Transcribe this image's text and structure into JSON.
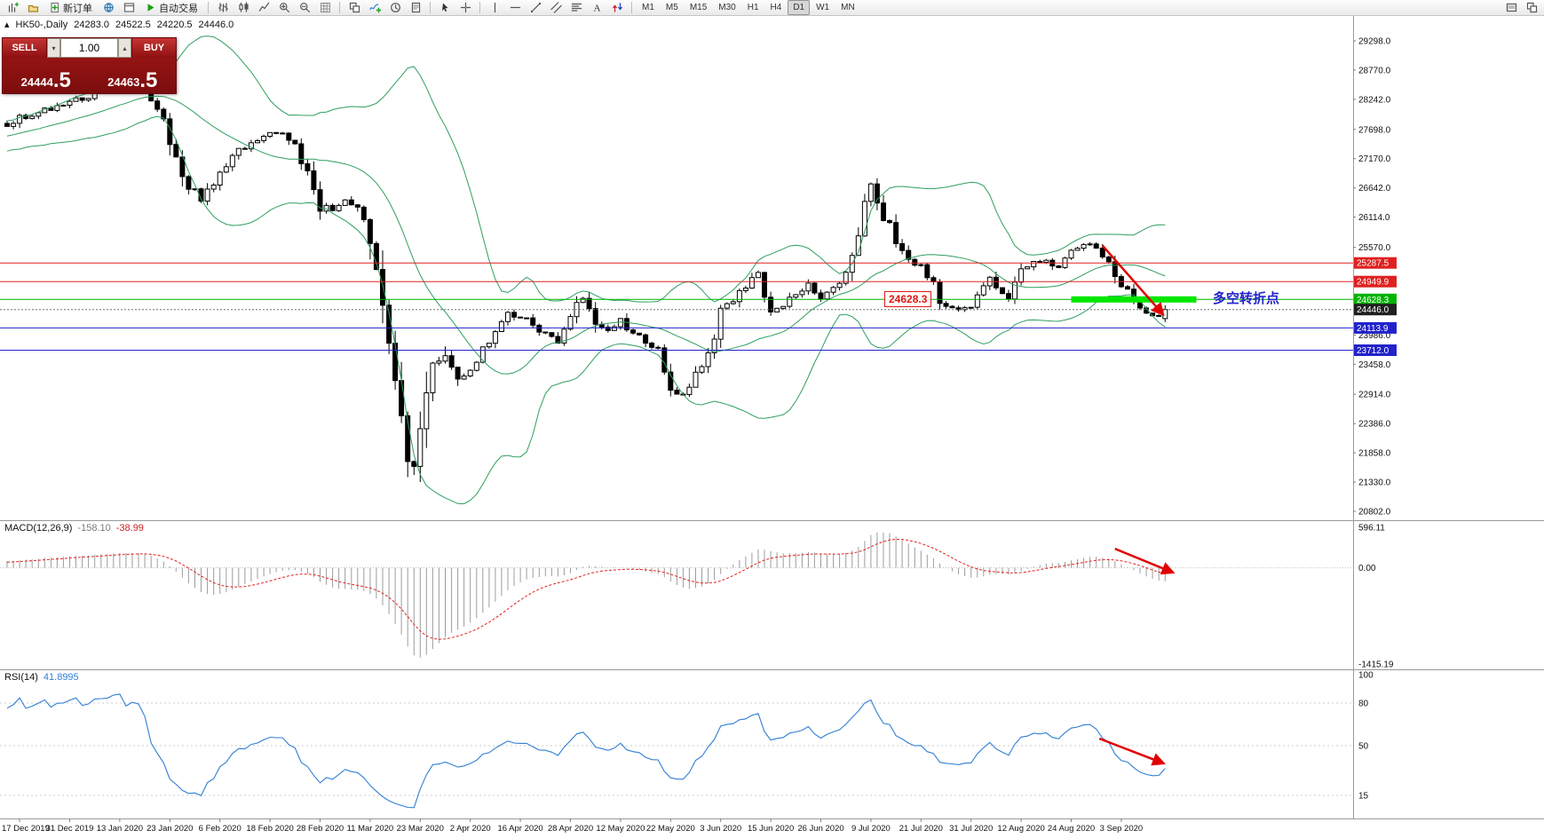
{
  "toolbar": {
    "items": [
      {
        "kind": "icon",
        "name": "new-chart-icon",
        "glyph": "chart-add"
      },
      {
        "kind": "icon",
        "name": "profiles-icon",
        "glyph": "profiles"
      },
      {
        "kind": "button",
        "name": "new-order-button",
        "glyph": "order-plus",
        "label": "新订单"
      },
      {
        "kind": "icon",
        "name": "market-watch-icon",
        "glyph": "globe"
      },
      {
        "kind": "icon",
        "name": "data-window-icon",
        "glyph": "data-window"
      },
      {
        "kind": "button",
        "name": "autotrading-button",
        "glyph": "play-green",
        "label": "自动交易"
      },
      {
        "kind": "sep"
      },
      {
        "kind": "icon",
        "name": "bar-chart-icon",
        "glyph": "bars"
      },
      {
        "kind": "icon",
        "name": "candlestick-chart-icon",
        "glyph": "candles"
      },
      {
        "kind": "icon",
        "name": "line-chart-icon",
        "glyph": "linechart"
      },
      {
        "kind": "icon",
        "name": "zoom-in-icon",
        "glyph": "zoom-in"
      },
      {
        "kind": "icon",
        "name": "zoom-out-icon",
        "glyph": "zoom-out"
      },
      {
        "kind": "icon",
        "name": "grid-icon",
        "glyph": "grid"
      },
      {
        "kind": "sep"
      },
      {
        "kind": "icon",
        "name": "tile-windows-icon",
        "glyph": "windows"
      },
      {
        "kind": "icon",
        "name": "indicators-icon",
        "glyph": "indicator-plus"
      },
      {
        "kind": "icon",
        "name": "periods-icon",
        "glyph": "clock"
      },
      {
        "kind": "icon",
        "name": "templates-icon",
        "glyph": "template"
      },
      {
        "kind": "sep"
      },
      {
        "kind": "icon",
        "name": "cursor-icon",
        "glyph": "cursor"
      },
      {
        "kind": "icon",
        "name": "crosshair-icon",
        "glyph": "crosshair"
      },
      {
        "kind": "sep"
      },
      {
        "kind": "icon",
        "name": "vertical-line-icon",
        "glyph": "vline"
      },
      {
        "kind": "icon",
        "name": "horizontal-line-icon",
        "glyph": "hline"
      },
      {
        "kind": "icon",
        "name": "trendline-icon",
        "glyph": "trendline"
      },
      {
        "kind": "icon",
        "name": "equidistant-channel-icon",
        "glyph": "channel"
      },
      {
        "kind": "icon",
        "name": "fibonacci-icon",
        "glyph": "fibo"
      },
      {
        "kind": "icon",
        "name": "text-label-icon",
        "glyph": "text"
      },
      {
        "kind": "icon",
        "name": "arrow-objects-icon",
        "glyph": "arrows"
      },
      {
        "kind": "sep"
      },
      {
        "kind": "timeframes"
      }
    ],
    "timeframes": [
      "M1",
      "M5",
      "M15",
      "M30",
      "H1",
      "H4",
      "D1",
      "W1",
      "MN"
    ],
    "active_timeframe": "D1",
    "right_icons": [
      {
        "name": "chart-list-icon",
        "glyph": "list"
      },
      {
        "name": "arrange-windows-icon",
        "glyph": "windows"
      }
    ]
  },
  "chart": {
    "symbol_label": "HK50-,Daily",
    "open": "24283.0",
    "high": "24522.5",
    "low": "24220.5",
    "close": "24446.0"
  },
  "trade_panel": {
    "sell_label": "SELL",
    "buy_label": "BUY",
    "volume": "1.00",
    "sell_price": "24444",
    "sell_price_frac": ".5",
    "buy_price": "24463",
    "buy_price_frac": ".5"
  },
  "annotations": {
    "price_flag": "24628.3",
    "turning_point": "多空转折点"
  },
  "indicators": {
    "macd": {
      "label": "MACD(12,26,9)",
      "value_main": "-158.10",
      "value_signal": "-38.99",
      "axis_labels": [
        "596.11",
        "0.00",
        "-1415.19"
      ],
      "axis_max": 596.11,
      "axis_min": -1415.19
    },
    "rsi": {
      "label": "RSI(14)",
      "value": "41.8995",
      "levels": [
        100,
        80,
        50,
        15
      ]
    }
  },
  "price_axis": {
    "max": 29298.0,
    "min": 20802.0,
    "ticks": [
      "29298.0",
      "28770.0",
      "28242.0",
      "27698.0",
      "27170.0",
      "26642.0",
      "26114.0",
      "25570.0",
      "23986.0",
      "23458.0",
      "22914.0",
      "22386.0",
      "21858.0",
      "21330.0",
      "20802.0"
    ],
    "badges": [
      {
        "label": "25287.5",
        "price": 25287.5,
        "color": "#e02020"
      },
      {
        "label": "24949.9",
        "price": 24949.9,
        "color": "#e02020"
      },
      {
        "label": "24628.3",
        "price": 24628.3,
        "color": "#00b400"
      },
      {
        "label": "24446.0",
        "price": 24446.0,
        "color": "#202020"
      },
      {
        "label": "24113.9",
        "price": 24113.9,
        "color": "#2222cc"
      },
      {
        "label": "23712.0",
        "price": 23712.0,
        "color": "#2222cc"
      }
    ]
  },
  "hlines": [
    {
      "price": 25287.5,
      "color": "#e02020",
      "style": "solid"
    },
    {
      "price": 24949.9,
      "color": "#e02020",
      "style": "solid"
    },
    {
      "price": 24628.3,
      "color": "#00b400",
      "style": "solid"
    },
    {
      "price": 24446.0,
      "color": "#707070",
      "style": "dot"
    },
    {
      "price": 24113.9,
      "color": "#2222cc",
      "style": "solid"
    },
    {
      "price": 23712.0,
      "color": "#2222cc",
      "style": "solid"
    }
  ],
  "time_axis": [
    "17 Dec 2019",
    "31 Dec 2019",
    "13 Jan 2020",
    "23 Jan 2020",
    "6 Feb 2020",
    "18 Feb 2020",
    "28 Feb 2020",
    "11 Mar 2020",
    "23 Mar 2020",
    "2 Apr 2020",
    "16 Apr 2020",
    "28 Apr 2020",
    "12 May 2020",
    "22 May 2020",
    "3 Jun 2020",
    "15 Jun 2020",
    "26 Jun 2020",
    "9 Jul 2020",
    "21 Jul 2020",
    "31 Jul 2020",
    "12 Aug 2020",
    "24 Aug 2020",
    "3 Sep 2020"
  ],
  "chart_data": {
    "type": "candlestick",
    "bars": 186,
    "first_label_bar": 2,
    "bars_per_label": 8,
    "last_ohlc": [
      24283.0,
      24522.5,
      24220.5,
      24446.0
    ],
    "price_anchors": [
      [
        0,
        27800
      ],
      [
        2,
        27900
      ],
      [
        6,
        28050
      ],
      [
        10,
        28180
      ],
      [
        14,
        28350
      ],
      [
        18,
        28500
      ],
      [
        21,
        28550
      ],
      [
        24,
        28100
      ],
      [
        26,
        27450
      ],
      [
        28,
        26800
      ],
      [
        31,
        26450
      ],
      [
        34,
        26900
      ],
      [
        38,
        27400
      ],
      [
        42,
        27650
      ],
      [
        45,
        27550
      ],
      [
        48,
        26950
      ],
      [
        50,
        26350
      ],
      [
        52,
        26200
      ],
      [
        54,
        26500
      ],
      [
        56,
        26250
      ],
      [
        58,
        25700
      ],
      [
        60,
        24500
      ],
      [
        62,
        23100
      ],
      [
        64,
        21800
      ],
      [
        65,
        21500
      ],
      [
        66,
        22300
      ],
      [
        68,
        23400
      ],
      [
        70,
        23600
      ],
      [
        72,
        23150
      ],
      [
        74,
        23300
      ],
      [
        77,
        23950
      ],
      [
        80,
        24350
      ],
      [
        82,
        24300
      ],
      [
        85,
        24100
      ],
      [
        88,
        23850
      ],
      [
        90,
        24350
      ],
      [
        92,
        24650
      ],
      [
        95,
        24050
      ],
      [
        98,
        24250
      ],
      [
        101,
        23950
      ],
      [
        104,
        23750
      ],
      [
        106,
        22950
      ],
      [
        108,
        22900
      ],
      [
        111,
        23400
      ],
      [
        114,
        24350
      ],
      [
        117,
        24800
      ],
      [
        120,
        25050
      ],
      [
        122,
        24400
      ],
      [
        125,
        24650
      ],
      [
        128,
        24900
      ],
      [
        130,
        24650
      ],
      [
        133,
        24900
      ],
      [
        136,
        25700
      ],
      [
        137,
        26300
      ],
      [
        138,
        26650
      ],
      [
        140,
        26150
      ],
      [
        142,
        25650
      ],
      [
        145,
        25150
      ],
      [
        146,
        25250
      ],
      [
        149,
        24650
      ],
      [
        152,
        24400
      ],
      [
        154,
        24550
      ],
      [
        157,
        24950
      ],
      [
        160,
        24650
      ],
      [
        162,
        25150
      ],
      [
        165,
        25350
      ],
      [
        168,
        25200
      ],
      [
        170,
        25500
      ],
      [
        172,
        25650
      ],
      [
        174,
        25550
      ],
      [
        176,
        25250
      ],
      [
        178,
        24900
      ],
      [
        180,
        24550
      ],
      [
        182,
        24400
      ],
      [
        184,
        24300
      ],
      [
        185,
        24446
      ]
    ],
    "bollinger": {
      "period": 20,
      "deviation": 2,
      "color": "#2e9e5e"
    },
    "candle_colors": {
      "up_fill": "#ffffff",
      "down_fill": "#000000",
      "outline": "#000000"
    },
    "macd_colors": {
      "histogram": "#9c9c9c",
      "signal": "#e02020"
    },
    "rsi_color": "#2f7fd4",
    "highlight_zone": {
      "price": 24628.3,
      "from_bar": 170,
      "to_bar": 190,
      "thickness": 7,
      "color": "#00e800"
    },
    "trend_arrows": [
      {
        "panel": "main",
        "from_bar": 175,
        "from_value": 25600,
        "to_bar": 184.5,
        "to_value": 24380
      },
      {
        "panel": "macd",
        "from_bar": 177,
        "from_value": 280,
        "to_bar": 186,
        "to_value": -60
      },
      {
        "panel": "rsi",
        "from_bar": 174.5,
        "from_value": 55,
        "to_bar": 184.5,
        "to_value": 38
      }
    ],
    "arrow_color": "#e00000"
  }
}
